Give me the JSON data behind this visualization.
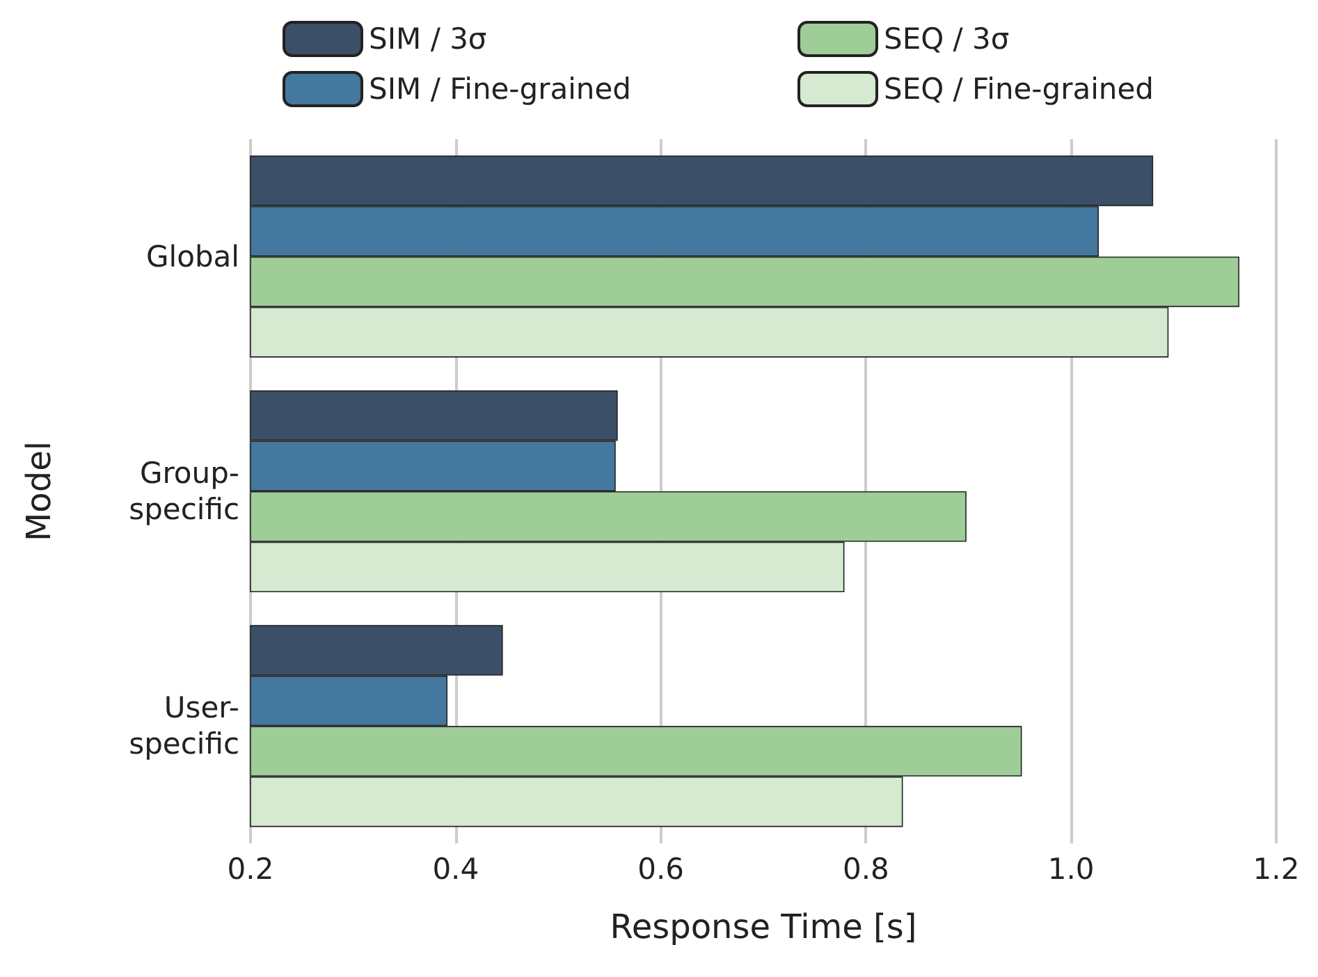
{
  "chart_data": {
    "type": "bar",
    "orientation": "horizontal",
    "xlabel": "Response Time [s]",
    "ylabel": "Model",
    "categories": [
      "Global",
      "Group-specific",
      "User-specific"
    ],
    "series": [
      {
        "name": "SIM / 3σ",
        "color": "#3b5068",
        "values": [
          1.08,
          0.558,
          0.446
        ]
      },
      {
        "name": "SIM / Fine-grained",
        "color": "#44789e",
        "values": [
          1.027,
          0.556,
          0.392
        ]
      },
      {
        "name": "SEQ / 3σ",
        "color": "#9ecd98",
        "values": [
          1.164,
          0.898,
          0.952
        ]
      },
      {
        "name": "SEQ / Fine-grained",
        "color": "#d5ead0",
        "values": [
          1.095,
          0.779,
          0.836
        ]
      }
    ],
    "xlim": [
      0.2,
      1.2
    ],
    "xticks": [
      0.2,
      0.4,
      0.6,
      0.8,
      {
        "value": 1,
        "label": "1.0"
      },
      1.2
    ],
    "grid": "x",
    "legend": "top"
  }
}
